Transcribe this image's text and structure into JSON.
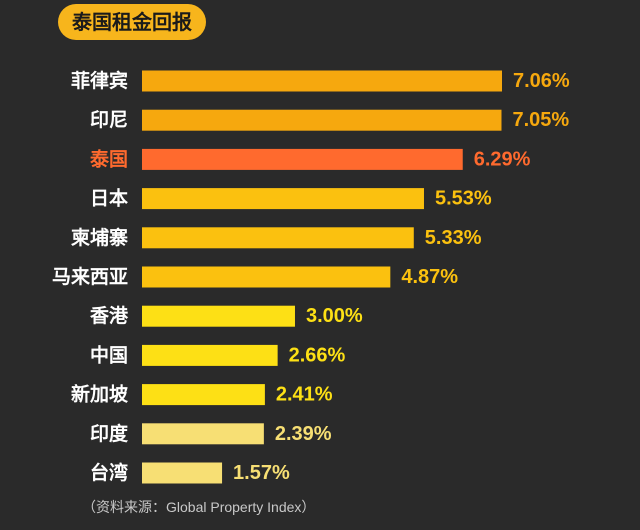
{
  "chart_data": {
    "type": "bar",
    "orientation": "horizontal",
    "title": "泰国租金回报",
    "categories": [
      "菲律宾",
      "印尼",
      "泰国",
      "日本",
      "柬埔寨",
      "马来西亚",
      "香港",
      "中国",
      "新加坡",
      "印度",
      "台湾"
    ],
    "values": [
      7.06,
      7.05,
      6.29,
      5.53,
      5.33,
      4.87,
      3.0,
      2.66,
      2.41,
      2.39,
      1.57
    ],
    "value_labels": [
      "7.06%",
      "7.05%",
      "6.29%",
      "5.53%",
      "5.33%",
      "4.87%",
      "3.00%",
      "2.66%",
      "2.41%",
      "2.39%",
      "1.57%"
    ],
    "bar_colors": [
      "#f6a80e",
      "#f6a80e",
      "#ff6a2e",
      "#fbc10f",
      "#fbc10f",
      "#fbc10f",
      "#fde015",
      "#fde015",
      "#fde015",
      "#f7df74",
      "#f7df74"
    ],
    "label_colors": [
      "#ffffff",
      "#ffffff",
      "#ff6a2e",
      "#ffffff",
      "#ffffff",
      "#ffffff",
      "#ffffff",
      "#ffffff",
      "#ffffff",
      "#ffffff",
      "#ffffff"
    ],
    "value_label_colors": [
      "#f6a80e",
      "#f6a80e",
      "#ff6a2e",
      "#fbc10f",
      "#fbc10f",
      "#fbc10f",
      "#fde015",
      "#fde015",
      "#fde015",
      "#f7df74",
      "#f7df74"
    ],
    "xlim": [
      0,
      7.06
    ],
    "source": "（资料来源：Global Property Index）"
  },
  "colors": {
    "background": "#2a2a2a",
    "title_pill": "#f7b51c"
  }
}
